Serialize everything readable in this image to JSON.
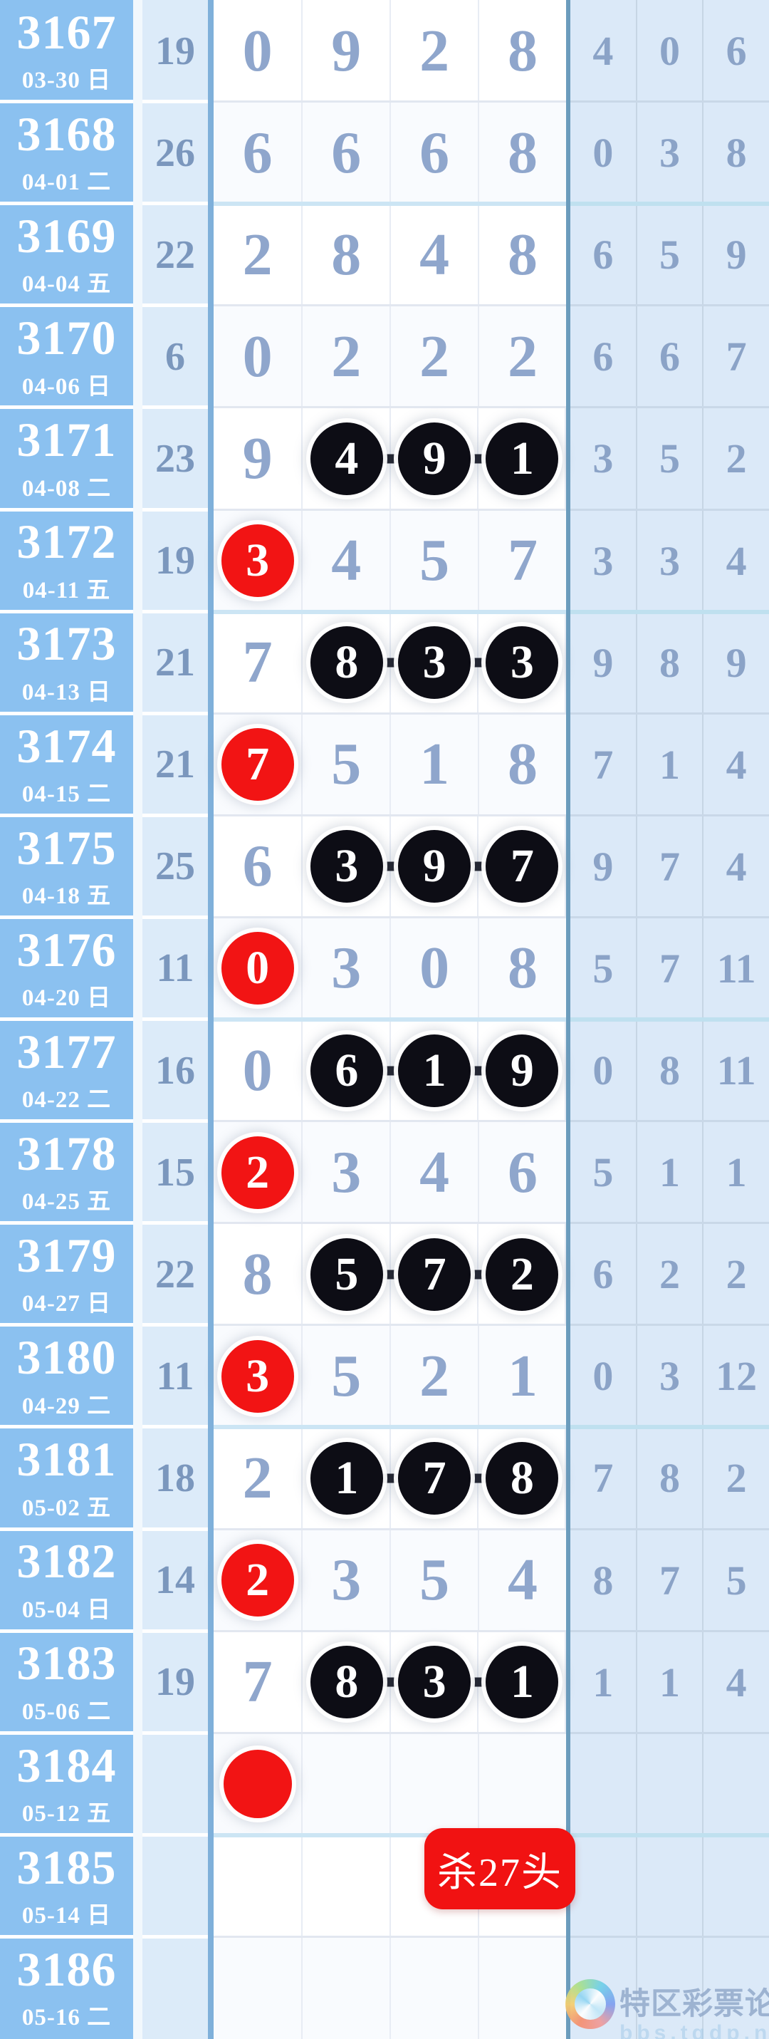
{
  "table": {
    "thick_after_indexes": [
      1,
      5,
      9,
      13,
      17
    ],
    "rows": [
      {
        "issue": "3167",
        "date": "03-30 日",
        "sum": "19",
        "first": {
          "style": "plain",
          "value": "0"
        },
        "tail": {
          "style": "plain",
          "values": [
            "9",
            "2",
            "8"
          ]
        },
        "right": [
          "4",
          "0",
          "6"
        ]
      },
      {
        "issue": "3168",
        "date": "04-01 二",
        "sum": "26",
        "first": {
          "style": "plain",
          "value": "6"
        },
        "tail": {
          "style": "plain",
          "values": [
            "6",
            "6",
            "8"
          ]
        },
        "right": [
          "0",
          "3",
          "8"
        ]
      },
      {
        "issue": "3169",
        "date": "04-04 五",
        "sum": "22",
        "first": {
          "style": "plain",
          "value": "2"
        },
        "tail": {
          "style": "plain",
          "values": [
            "8",
            "4",
            "8"
          ]
        },
        "right": [
          "6",
          "5",
          "9"
        ]
      },
      {
        "issue": "3170",
        "date": "04-06 日",
        "sum": "6",
        "first": {
          "style": "plain",
          "value": "0"
        },
        "tail": {
          "style": "plain",
          "values": [
            "2",
            "2",
            "2"
          ]
        },
        "right": [
          "6",
          "6",
          "7"
        ]
      },
      {
        "issue": "3171",
        "date": "04-08 二",
        "sum": "23",
        "first": {
          "style": "plain",
          "value": "9"
        },
        "tail": {
          "style": "black",
          "values": [
            "4",
            "9",
            "1"
          ]
        },
        "right": [
          "3",
          "5",
          "2"
        ]
      },
      {
        "issue": "3172",
        "date": "04-11 五",
        "sum": "19",
        "first": {
          "style": "red",
          "value": "3"
        },
        "tail": {
          "style": "plain",
          "values": [
            "4",
            "5",
            "7"
          ]
        },
        "right": [
          "3",
          "3",
          "4"
        ]
      },
      {
        "issue": "3173",
        "date": "04-13 日",
        "sum": "21",
        "first": {
          "style": "plain",
          "value": "7"
        },
        "tail": {
          "style": "black",
          "values": [
            "8",
            "3",
            "3"
          ]
        },
        "right": [
          "9",
          "8",
          "9"
        ]
      },
      {
        "issue": "3174",
        "date": "04-15 二",
        "sum": "21",
        "first": {
          "style": "red",
          "value": "7"
        },
        "tail": {
          "style": "plain",
          "values": [
            "5",
            "1",
            "8"
          ]
        },
        "right": [
          "7",
          "1",
          "4"
        ]
      },
      {
        "issue": "3175",
        "date": "04-18 五",
        "sum": "25",
        "first": {
          "style": "plain",
          "value": "6"
        },
        "tail": {
          "style": "black",
          "values": [
            "3",
            "9",
            "7"
          ]
        },
        "right": [
          "9",
          "7",
          "4"
        ]
      },
      {
        "issue": "3176",
        "date": "04-20 日",
        "sum": "11",
        "first": {
          "style": "red",
          "value": "0"
        },
        "tail": {
          "style": "plain",
          "values": [
            "3",
            "0",
            "8"
          ]
        },
        "right": [
          "5",
          "7",
          "11"
        ]
      },
      {
        "issue": "3177",
        "date": "04-22 二",
        "sum": "16",
        "first": {
          "style": "plain",
          "value": "0"
        },
        "tail": {
          "style": "black",
          "values": [
            "6",
            "1",
            "9"
          ]
        },
        "right": [
          "0",
          "8",
          "11"
        ]
      },
      {
        "issue": "3178",
        "date": "04-25 五",
        "sum": "15",
        "first": {
          "style": "red",
          "value": "2"
        },
        "tail": {
          "style": "plain",
          "values": [
            "3",
            "4",
            "6"
          ]
        },
        "right": [
          "5",
          "1",
          "1"
        ]
      },
      {
        "issue": "3179",
        "date": "04-27 日",
        "sum": "22",
        "first": {
          "style": "plain",
          "value": "8"
        },
        "tail": {
          "style": "black",
          "values": [
            "5",
            "7",
            "2"
          ]
        },
        "right": [
          "6",
          "2",
          "2"
        ]
      },
      {
        "issue": "3180",
        "date": "04-29 二",
        "sum": "11",
        "first": {
          "style": "red",
          "value": "3"
        },
        "tail": {
          "style": "plain",
          "values": [
            "5",
            "2",
            "1"
          ]
        },
        "right": [
          "0",
          "3",
          "12"
        ]
      },
      {
        "issue": "3181",
        "date": "05-02 五",
        "sum": "18",
        "first": {
          "style": "plain",
          "value": "2"
        },
        "tail": {
          "style": "black",
          "values": [
            "1",
            "7",
            "8"
          ]
        },
        "right": [
          "7",
          "8",
          "2"
        ]
      },
      {
        "issue": "3182",
        "date": "05-04 日",
        "sum": "14",
        "first": {
          "style": "red",
          "value": "2"
        },
        "tail": {
          "style": "plain",
          "values": [
            "3",
            "5",
            "4"
          ]
        },
        "right": [
          "8",
          "7",
          "5"
        ]
      },
      {
        "issue": "3183",
        "date": "05-06 二",
        "sum": "19",
        "first": {
          "style": "plain",
          "value": "7"
        },
        "tail": {
          "style": "black",
          "values": [
            "8",
            "3",
            "1"
          ]
        },
        "right": [
          "1",
          "1",
          "4"
        ]
      },
      {
        "issue": "3184",
        "date": "05-12 五",
        "sum": "",
        "first": {
          "style": "dot",
          "value": ""
        },
        "tail": {
          "style": "none",
          "values": []
        },
        "right": [
          "",
          "",
          ""
        ]
      },
      {
        "issue": "3185",
        "date": "05-14 日",
        "sum": "",
        "first": {
          "style": "none",
          "value": ""
        },
        "tail": {
          "style": "button",
          "values": []
        },
        "right": [
          "",
          "",
          ""
        ]
      },
      {
        "issue": "3186",
        "date": "05-16 二",
        "sum": "",
        "first": {
          "style": "none",
          "value": ""
        },
        "tail": {
          "style": "none",
          "values": []
        },
        "right": [
          "",
          "",
          ""
        ]
      }
    ]
  },
  "kill_button": {
    "label": "杀27头",
    "color": "#f11212"
  },
  "watermark": {
    "site": "特区彩票论坛",
    "url": "bbs.tqdp.net"
  },
  "colors": {
    "issue_column_bg": "#8bc1f0",
    "sum_column_bg": "#dcebf9",
    "right_panel_bg": "#dbe9f8",
    "divider_blue": "#7fb0da",
    "divider_dark": "#6b9cbd",
    "main_digit": "#8fa6cc",
    "sum_digit": "#7b97bd",
    "right_digit": "#8ba3c7",
    "black_ball": "#0d0d15",
    "red_ball": "#f21414",
    "group_separator": "#cce5f4",
    "issue_text": "#ffffff"
  }
}
